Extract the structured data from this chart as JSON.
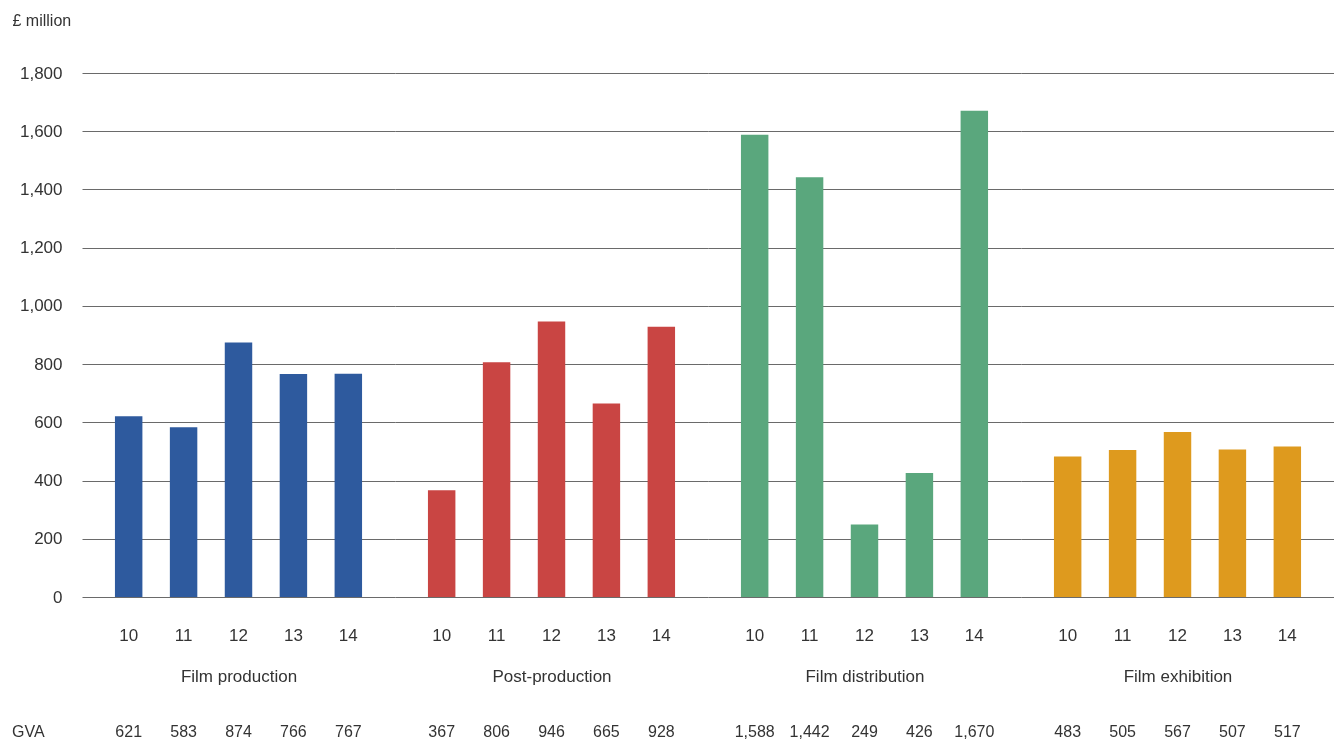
{
  "chart_data": [
    {
      "type": "bar",
      "ylabel": "£ million",
      "xlabel": "Film production",
      "categories": [
        "10",
        "11",
        "12",
        "13",
        "14"
      ],
      "values": [
        621,
        583,
        874,
        766,
        767
      ],
      "color": "#2e5a9e",
      "ylim": [
        0,
        1800
      ],
      "yticks": [
        0,
        200,
        400,
        600,
        800,
        {
          "value": 1000,
          "label": "1,000"
        },
        {
          "value": 1200,
          "label": "1,200"
        },
        {
          "value": 1400,
          "label": "1,400"
        },
        {
          "value": 1600,
          "label": "1,600"
        },
        {
          "value": 1800,
          "label": "1,800"
        }
      ],
      "grid": "y",
      "data_labels": true,
      "annotations": [
        "GVA"
      ]
    },
    {
      "type": "bar",
      "xlabel": "Post-production",
      "categories": [
        "10",
        "11",
        "12",
        "13",
        "14"
      ],
      "values": [
        367,
        806,
        946,
        665,
        928
      ],
      "color": "#c94543",
      "ylim": [
        0,
        1800
      ],
      "yticks": [
        0,
        200,
        400,
        600,
        800,
        1000,
        1200,
        1400,
        1600,
        1800
      ],
      "grid": "y",
      "data_labels": true,
      "tick_labels": "x"
    },
    {
      "type": "bar",
      "xlabel": "Film distribution",
      "categories": [
        "10",
        "11",
        "12",
        "13",
        "14"
      ],
      "values": [
        1588,
        1442,
        249,
        426,
        1670
      ],
      "value_labels": [
        "1,588",
        "1,442",
        "249",
        "426",
        "1,670"
      ],
      "color": "#5aa77d",
      "ylim": [
        0,
        1800
      ],
      "yticks": [
        0,
        200,
        400,
        600,
        800,
        1000,
        1200,
        1400,
        1600,
        1800
      ],
      "grid": "y",
      "tick_labels": "x"
    },
    {
      "type": "bar",
      "xlabel": "Film exhibition",
      "categories": [
        "10",
        "11",
        "12",
        "13",
        "14"
      ],
      "values": [
        483,
        505,
        567,
        507,
        517
      ],
      "color": "#de9a1e",
      "ylim": [
        0,
        1800
      ],
      "yticks": [
        0,
        200,
        400,
        600,
        800,
        1000,
        1200,
        1400,
        1600,
        1800
      ],
      "grid": "y",
      "data_labels": true,
      "tick_labels": "x"
    }
  ]
}
